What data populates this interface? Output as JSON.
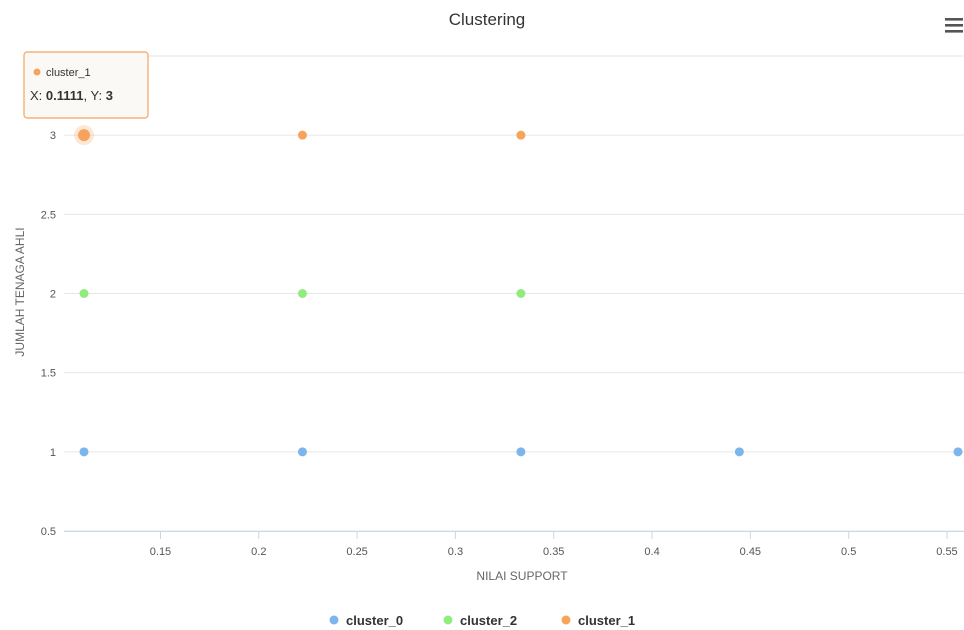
{
  "chart_data": {
    "type": "scatter",
    "title": "Clustering",
    "xlabel": "NILAI SUPPORT",
    "ylabel": "JUMLAH TENAGA AHLI",
    "xlim": [
      0.1111,
      0.5556
    ],
    "ylim": [
      0.5,
      3.5
    ],
    "xticks": [
      0.15,
      0.2,
      0.25,
      0.3,
      0.35,
      0.4,
      0.45,
      0.5,
      0.55
    ],
    "xtick_labels": [
      "0.15",
      "0.2",
      "0.25",
      "0.3",
      "0.35",
      "0.4",
      "0.45",
      "0.5",
      "0.55"
    ],
    "yticks": [
      0.5,
      1,
      1.5,
      2,
      2.5,
      3,
      3.5
    ],
    "ytick_labels": [
      "0.5",
      "1",
      "1.5",
      "2",
      "2.5",
      "3",
      "3.5"
    ],
    "grid": true,
    "legend_position": "bottom-center",
    "series": [
      {
        "name": "cluster_0",
        "color": "#7cb5ec",
        "points": [
          [
            0.1111,
            1
          ],
          [
            0.2222,
            1
          ],
          [
            0.3333,
            1
          ],
          [
            0.4444,
            1
          ],
          [
            0.5556,
            1
          ]
        ]
      },
      {
        "name": "cluster_2",
        "color": "#90ed7d",
        "points": [
          [
            0.1111,
            2
          ],
          [
            0.2222,
            2
          ],
          [
            0.3333,
            2
          ]
        ]
      },
      {
        "name": "cluster_1",
        "color": "#f7a35c",
        "points": [
          [
            0.1111,
            3
          ],
          [
            0.2222,
            3
          ],
          [
            0.3333,
            3
          ]
        ]
      }
    ],
    "tooltip": {
      "series_name": "cluster_1",
      "x_prefix": "X: ",
      "x_value": "0.1111",
      "y_prefix": ", Y: ",
      "y_value": "3",
      "point": [
        0.1111,
        3
      ],
      "border_color": "#f7a35c"
    }
  },
  "menu": {
    "icon": "hamburger-menu-icon"
  }
}
